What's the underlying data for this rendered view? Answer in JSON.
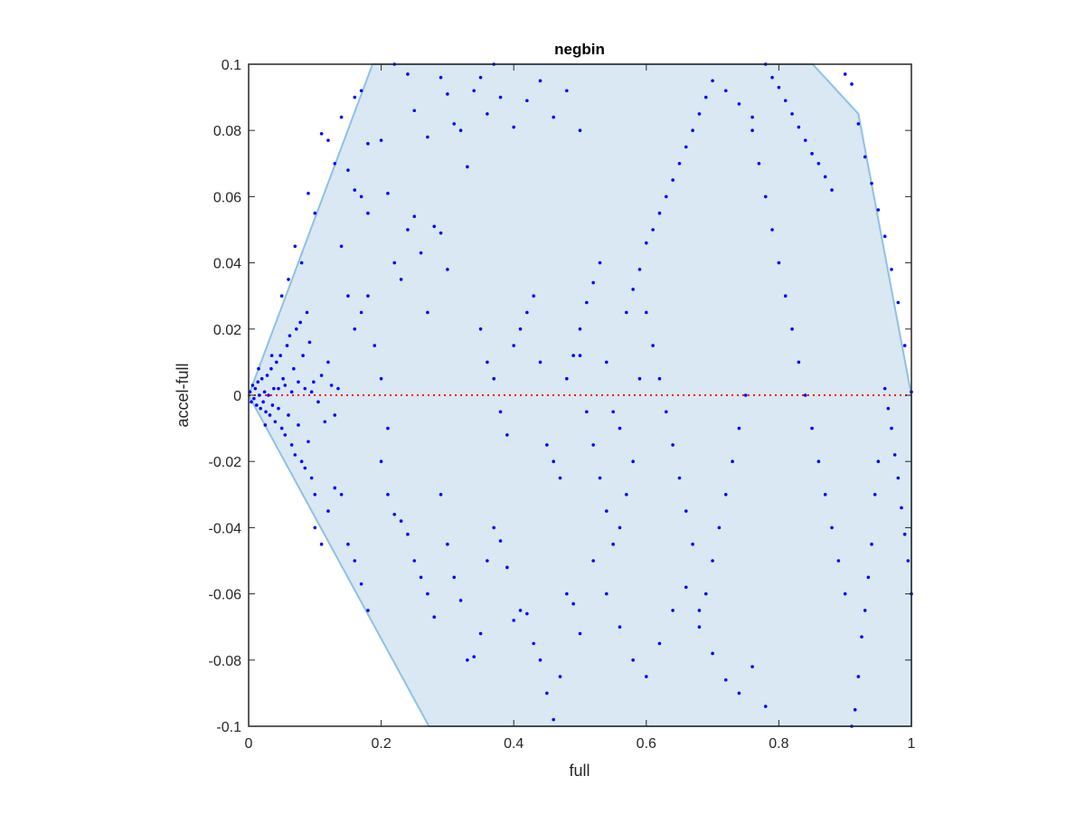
{
  "chart_data": {
    "type": "scatter",
    "title": "negbin",
    "xlabel": "full",
    "ylabel": "accel-full",
    "xlim": [
      0,
      1
    ],
    "ylim": [
      -0.1,
      0.1
    ],
    "xticks": [
      0,
      0.2,
      0.4,
      0.6,
      0.8,
      1
    ],
    "xtick_labels": [
      "0",
      "0.2",
      "0.4",
      "0.6",
      "0.8",
      "1"
    ],
    "yticks": [
      -0.1,
      -0.08,
      -0.06,
      -0.04,
      -0.02,
      0,
      0.02,
      0.04,
      0.06,
      0.08,
      0.1
    ],
    "ytick_labels": [
      "-0.1",
      "-0.08",
      "-0.06",
      "-0.04",
      "-0.02",
      "0",
      "0.02",
      "0.04",
      "0.06",
      "0.08",
      "0.1"
    ],
    "grid": false,
    "reference_line": {
      "y": 0,
      "style": "dotted",
      "color": "#ff0000"
    },
    "feasible_region": {
      "fill": "#d9e8f3",
      "edge": "#8fc1e3",
      "vertices": [
        [
          0,
          0
        ],
        [
          0.187,
          0.1
        ],
        [
          0.851,
          0.1
        ],
        [
          0.92,
          0.085
        ],
        [
          1,
          0
        ],
        [
          1,
          -0.1
        ],
        [
          0.272,
          -0.1
        ],
        [
          0,
          0
        ]
      ]
    },
    "series": [
      {
        "color": "#0000ff",
        "points": [
          [
            0.002,
            0.001
          ],
          [
            0.004,
            -0.002
          ],
          [
            0.006,
            0.003
          ],
          [
            0.008,
            -0.001
          ],
          [
            0.01,
            0.002
          ],
          [
            0.012,
            -0.003
          ],
          [
            0.014,
            0.004
          ],
          [
            0.016,
            0.0
          ],
          [
            0.018,
            -0.004
          ],
          [
            0.02,
            0.005
          ],
          [
            0.022,
            -0.002
          ],
          [
            0.024,
            0.001
          ],
          [
            0.026,
            -0.005
          ],
          [
            0.028,
            0.006
          ],
          [
            0.03,
            0.0
          ],
          [
            0.032,
            -0.006
          ],
          [
            0.034,
            0.008
          ],
          [
            0.036,
            -0.003
          ],
          [
            0.038,
            0.002
          ],
          [
            0.04,
            -0.008
          ],
          [
            0.042,
            0.01
          ],
          [
            0.045,
            -0.004
          ],
          [
            0.048,
            0.012
          ],
          [
            0.05,
            -0.01
          ],
          [
            0.052,
            0.005
          ],
          [
            0.055,
            -0.012
          ],
          [
            0.058,
            0.015
          ],
          [
            0.06,
            -0.006
          ],
          [
            0.062,
            0.018
          ],
          [
            0.065,
            -0.015
          ],
          [
            0.068,
            0.008
          ],
          [
            0.07,
            -0.018
          ],
          [
            0.072,
            0.02
          ],
          [
            0.075,
            -0.009
          ],
          [
            0.078,
            0.022
          ],
          [
            0.08,
            -0.02
          ],
          [
            0.082,
            0.012
          ],
          [
            0.085,
            -0.022
          ],
          [
            0.088,
            0.025
          ],
          [
            0.09,
            -0.014
          ],
          [
            0.092,
            0.016
          ],
          [
            0.095,
            -0.025
          ],
          [
            0.098,
            0.004
          ],
          [
            0.1,
            -0.03
          ],
          [
            0.015,
            0.008
          ],
          [
            0.025,
            -0.009
          ],
          [
            0.035,
            0.012
          ],
          [
            0.045,
            0.002
          ],
          [
            0.055,
            0.003
          ],
          [
            0.065,
            0.001
          ],
          [
            0.075,
            0.004
          ],
          [
            0.085,
            0.002
          ],
          [
            0.095,
            0.001
          ],
          [
            0.105,
            -0.002
          ],
          [
            0.11,
            0.006
          ],
          [
            0.115,
            -0.008
          ],
          [
            0.12,
            0.01
          ],
          [
            0.125,
            0.003
          ],
          [
            0.13,
            -0.006
          ],
          [
            0.135,
            0.002
          ],
          [
            0.05,
            0.03
          ],
          [
            0.06,
            0.035
          ],
          [
            0.07,
            0.045
          ],
          [
            0.08,
            0.04
          ],
          [
            0.09,
            0.061
          ],
          [
            0.1,
            0.055
          ],
          [
            0.11,
            0.079
          ],
          [
            0.12,
            0.077
          ],
          [
            0.13,
            0.07
          ],
          [
            0.14,
            0.084
          ],
          [
            0.16,
            0.09
          ],
          [
            0.17,
            0.092
          ],
          [
            0.18,
            0.076
          ],
          [
            0.1,
            -0.04
          ],
          [
            0.11,
            -0.045
          ],
          [
            0.12,
            -0.035
          ],
          [
            0.13,
            -0.028
          ],
          [
            0.14,
            -0.03
          ],
          [
            0.15,
            -0.045
          ],
          [
            0.16,
            -0.05
          ],
          [
            0.17,
            -0.057
          ],
          [
            0.18,
            -0.065
          ],
          [
            0.14,
            0.045
          ],
          [
            0.15,
            0.03
          ],
          [
            0.16,
            0.02
          ],
          [
            0.17,
            0.025
          ],
          [
            0.18,
            0.03
          ],
          [
            0.19,
            0.015
          ],
          [
            0.2,
            0.005
          ],
          [
            0.21,
            -0.01
          ],
          [
            0.15,
            0.068
          ],
          [
            0.16,
            0.062
          ],
          [
            0.17,
            0.06
          ],
          [
            0.18,
            0.055
          ],
          [
            0.2,
            0.077
          ],
          [
            0.21,
            0.061
          ],
          [
            0.22,
            0.04
          ],
          [
            0.23,
            0.035
          ],
          [
            0.24,
            0.05
          ],
          [
            0.25,
            0.054
          ],
          [
            0.26,
            0.043
          ],
          [
            0.27,
            0.025
          ],
          [
            0.28,
            0.051
          ],
          [
            0.29,
            0.049
          ],
          [
            0.3,
            0.038
          ],
          [
            0.22,
            0.1
          ],
          [
            0.24,
            0.097
          ],
          [
            0.25,
            0.086
          ],
          [
            0.27,
            0.078
          ],
          [
            0.29,
            0.096
          ],
          [
            0.3,
            0.091
          ],
          [
            0.31,
            0.082
          ],
          [
            0.32,
            0.08
          ],
          [
            0.33,
            0.069
          ],
          [
            0.34,
            0.092
          ],
          [
            0.35,
            0.096
          ],
          [
            0.36,
            0.085
          ],
          [
            0.37,
            0.1
          ],
          [
            0.38,
            0.09
          ],
          [
            0.4,
            0.081
          ],
          [
            0.42,
            0.089
          ],
          [
            0.44,
            0.095
          ],
          [
            0.46,
            0.084
          ],
          [
            0.48,
            0.092
          ],
          [
            0.5,
            0.08
          ],
          [
            0.2,
            -0.02
          ],
          [
            0.21,
            -0.03
          ],
          [
            0.22,
            -0.036
          ],
          [
            0.23,
            -0.038
          ],
          [
            0.24,
            -0.042
          ],
          [
            0.25,
            -0.05
          ],
          [
            0.26,
            -0.055
          ],
          [
            0.27,
            -0.06
          ],
          [
            0.28,
            -0.067
          ],
          [
            0.29,
            -0.03
          ],
          [
            0.3,
            -0.045
          ],
          [
            0.31,
            -0.055
          ],
          [
            0.32,
            -0.062
          ],
          [
            0.33,
            -0.08
          ],
          [
            0.34,
            -0.079
          ],
          [
            0.35,
            -0.072
          ],
          [
            0.36,
            -0.05
          ],
          [
            0.37,
            -0.04
          ],
          [
            0.38,
            -0.044
          ],
          [
            0.39,
            -0.052
          ],
          [
            0.4,
            -0.068
          ],
          [
            0.41,
            -0.065
          ],
          [
            0.42,
            -0.066
          ],
          [
            0.43,
            -0.075
          ],
          [
            0.44,
            -0.08
          ],
          [
            0.45,
            -0.09
          ],
          [
            0.46,
            -0.098
          ],
          [
            0.47,
            -0.085
          ],
          [
            0.48,
            -0.06
          ],
          [
            0.49,
            -0.063
          ],
          [
            0.5,
            -0.072
          ],
          [
            0.52,
            -0.05
          ],
          [
            0.54,
            -0.06
          ],
          [
            0.56,
            -0.07
          ],
          [
            0.58,
            -0.08
          ],
          [
            0.6,
            -0.085
          ],
          [
            0.62,
            -0.075
          ],
          [
            0.64,
            -0.065
          ],
          [
            0.66,
            -0.058
          ],
          [
            0.68,
            -0.07
          ],
          [
            0.7,
            -0.078
          ],
          [
            0.72,
            -0.086
          ],
          [
            0.74,
            -0.09
          ],
          [
            0.76,
            -0.082
          ],
          [
            0.78,
            -0.094
          ],
          [
            0.35,
            0.02
          ],
          [
            0.36,
            0.01
          ],
          [
            0.37,
            0.005
          ],
          [
            0.38,
            -0.005
          ],
          [
            0.39,
            -0.012
          ],
          [
            0.4,
            0.015
          ],
          [
            0.41,
            0.02
          ],
          [
            0.42,
            0.025
          ],
          [
            0.43,
            0.03
          ],
          [
            0.44,
            0.01
          ],
          [
            0.45,
            -0.015
          ],
          [
            0.46,
            -0.02
          ],
          [
            0.47,
            -0.025
          ],
          [
            0.48,
            0.005
          ],
          [
            0.49,
            0.012
          ],
          [
            0.5,
            0.02
          ],
          [
            0.51,
            0.028
          ],
          [
            0.52,
            0.034
          ],
          [
            0.53,
            0.04
          ],
          [
            0.54,
            0.01
          ],
          [
            0.55,
            -0.005
          ],
          [
            0.56,
            -0.01
          ],
          [
            0.57,
            0.025
          ],
          [
            0.58,
            0.032
          ],
          [
            0.59,
            0.038
          ],
          [
            0.6,
            0.046
          ],
          [
            0.61,
            0.05
          ],
          [
            0.62,
            0.055
          ],
          [
            0.63,
            0.06
          ],
          [
            0.64,
            0.065
          ],
          [
            0.65,
            0.07
          ],
          [
            0.66,
            0.075
          ],
          [
            0.67,
            0.08
          ],
          [
            0.68,
            0.085
          ],
          [
            0.69,
            0.09
          ],
          [
            0.7,
            0.095
          ],
          [
            0.72,
            0.092
          ],
          [
            0.74,
            0.088
          ],
          [
            0.76,
            0.084
          ],
          [
            0.78,
            0.1
          ],
          [
            0.79,
            0.096
          ],
          [
            0.8,
            0.093
          ],
          [
            0.81,
            0.089
          ],
          [
            0.82,
            0.085
          ],
          [
            0.83,
            0.081
          ],
          [
            0.84,
            0.077
          ],
          [
            0.85,
            0.073
          ],
          [
            0.86,
            0.07
          ],
          [
            0.87,
            0.066
          ],
          [
            0.88,
            0.062
          ],
          [
            0.9,
            0.097
          ],
          [
            0.91,
            0.094
          ],
          [
            0.92,
            0.082
          ],
          [
            0.93,
            0.072
          ],
          [
            0.94,
            0.064
          ],
          [
            0.95,
            0.056
          ],
          [
            0.96,
            0.048
          ],
          [
            0.97,
            0.038
          ],
          [
            0.98,
            0.028
          ],
          [
            0.99,
            0.015
          ],
          [
            1.0,
            0.001
          ],
          [
            1.0,
            -0.06
          ],
          [
            0.995,
            -0.05
          ],
          [
            0.99,
            -0.042
          ],
          [
            0.985,
            -0.034
          ],
          [
            0.98,
            -0.025
          ],
          [
            0.975,
            -0.018
          ],
          [
            0.97,
            -0.01
          ],
          [
            0.965,
            -0.004
          ],
          [
            0.96,
            0.002
          ],
          [
            0.95,
            -0.02
          ],
          [
            0.945,
            -0.03
          ],
          [
            0.94,
            -0.045
          ],
          [
            0.935,
            -0.055
          ],
          [
            0.93,
            -0.065
          ],
          [
            0.925,
            -0.073
          ],
          [
            0.92,
            -0.085
          ],
          [
            0.915,
            -0.095
          ],
          [
            0.91,
            -0.1
          ],
          [
            0.9,
            -0.06
          ],
          [
            0.89,
            -0.05
          ],
          [
            0.88,
            -0.04
          ],
          [
            0.87,
            -0.03
          ],
          [
            0.86,
            -0.02
          ],
          [
            0.85,
            -0.01
          ],
          [
            0.84,
            0.0
          ],
          [
            0.83,
            0.01
          ],
          [
            0.82,
            0.02
          ],
          [
            0.81,
            0.03
          ],
          [
            0.8,
            0.04
          ],
          [
            0.79,
            0.05
          ],
          [
            0.78,
            0.06
          ],
          [
            0.77,
            0.07
          ],
          [
            0.76,
            0.08
          ],
          [
            0.75,
            0.0
          ],
          [
            0.74,
            -0.01
          ],
          [
            0.73,
            -0.02
          ],
          [
            0.72,
            -0.03
          ],
          [
            0.71,
            -0.04
          ],
          [
            0.7,
            -0.05
          ],
          [
            0.69,
            -0.06
          ],
          [
            0.68,
            -0.065
          ],
          [
            0.67,
            -0.045
          ],
          [
            0.66,
            -0.035
          ],
          [
            0.65,
            -0.025
          ],
          [
            0.64,
            -0.015
          ],
          [
            0.63,
            -0.005
          ],
          [
            0.62,
            0.005
          ],
          [
            0.61,
            0.015
          ],
          [
            0.6,
            0.025
          ],
          [
            0.59,
            0.005
          ],
          [
            0.58,
            -0.02
          ],
          [
            0.57,
            -0.03
          ],
          [
            0.56,
            -0.04
          ],
          [
            0.55,
            -0.045
          ],
          [
            0.54,
            -0.035
          ],
          [
            0.53,
            -0.025
          ],
          [
            0.52,
            -0.015
          ],
          [
            0.51,
            -0.005
          ],
          [
            0.5,
            0.012
          ]
        ]
      }
    ]
  }
}
